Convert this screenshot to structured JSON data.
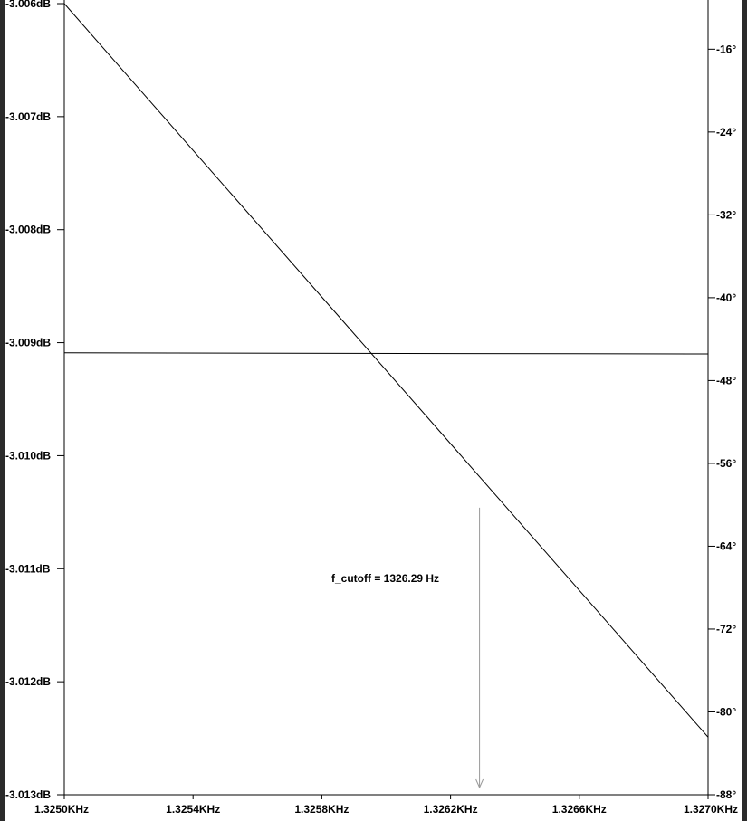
{
  "chart_data": {
    "type": "line",
    "title": "",
    "xlabel": "",
    "ylabel": "",
    "x_ticks": [
      "1.3250KHz",
      "1.3254KHz",
      "1.3258KHz",
      "1.3262KHz",
      "1.3266KHz",
      "1.3270KHz"
    ],
    "y_left_ticks": [
      "-3.006dB",
      "-3.007dB",
      "-3.008dB",
      "-3.009dB",
      "-3.010dB",
      "-3.011dB",
      "-3.012dB",
      "-3.013dB"
    ],
    "y_right_ticks": [
      "-16°",
      "-24°",
      "-32°",
      "-40°",
      "-48°",
      "-56°",
      "-64°",
      "-72°",
      "-80°",
      "-88°"
    ],
    "xlim": [
      1325.0,
      1327.0
    ],
    "ylim_left": [
      -3.013,
      -3.006
    ],
    "ylim_right": [
      -88,
      -11.6
    ],
    "grid": false,
    "series": [
      {
        "axis": "left",
        "color": "#000000",
        "x": [
          1325.0,
          1327.0
        ],
        "y": [
          -3.006,
          -3.01249
        ]
      },
      {
        "axis": "left",
        "color": "#000000",
        "x": [
          1325.0,
          1327.0
        ],
        "y": [
          -3.00909,
          -3.0091
        ]
      }
    ],
    "annotations": [
      {
        "text": "f_cutoff = 1326.29 Hz",
        "marker_x": 1326.29,
        "marker_y_top": -3.01046,
        "color": "#999999"
      }
    ]
  }
}
